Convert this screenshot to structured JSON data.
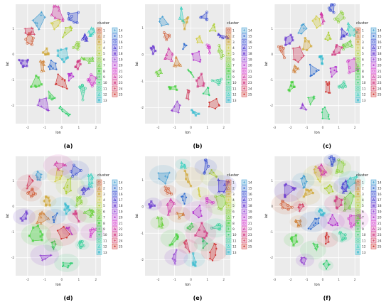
{
  "figure": {
    "panel_labels": [
      "(a)",
      "(b)",
      "(c)",
      "(d)",
      "(e)",
      "(f)"
    ]
  },
  "chart_data": [
    {
      "panel": "(a)",
      "type": "scatter",
      "xlabel": "lon",
      "ylabel": "lat",
      "xlim": [
        -2.7,
        2.3
      ],
      "ylim": [
        -2.7,
        1.95
      ],
      "xticks": [
        -2,
        -1,
        0,
        1,
        2
      ],
      "yticks": [
        -2,
        -1,
        0,
        1
      ],
      "grid": true,
      "legend": {
        "title": "cluster",
        "placement": "right",
        "entries": [
          "1",
          "2",
          "3",
          "4",
          "5",
          "6",
          "7",
          "8",
          "9",
          "10",
          "11",
          "12",
          "13",
          "14",
          "15",
          "16",
          "17",
          "18",
          "19",
          "20",
          "21",
          "22",
          "23",
          "24",
          "25"
        ]
      },
      "shaded_regions": false,
      "cluster_centers": [
        {
          "cluster": 1,
          "x": -1.8,
          "y": 0.6
        },
        {
          "cluster": 2,
          "x": -1.2,
          "y": -0.5
        },
        {
          "cluster": 3,
          "x": -0.9,
          "y": 0.1
        },
        {
          "cluster": 4,
          "x": -0.3,
          "y": 1.2
        },
        {
          "cluster": 5,
          "x": 0.4,
          "y": 0.8
        },
        {
          "cluster": 6,
          "x": 0.9,
          "y": 0.3
        },
        {
          "cluster": 7,
          "x": 1.5,
          "y": -0.2
        },
        {
          "cluster": 8,
          "x": -1.6,
          "y": -1.1
        },
        {
          "cluster": 9,
          "x": -0.6,
          "y": -1.6
        },
        {
          "cluster": 10,
          "x": 0.2,
          "y": -2.2
        },
        {
          "cluster": 11,
          "x": 1.1,
          "y": -1.5
        },
        {
          "cluster": 12,
          "x": 1.7,
          "y": 0.9
        },
        {
          "cluster": 13,
          "x": 0.1,
          "y": 0.0
        },
        {
          "cluster": 14,
          "x": -1.3,
          "y": 1.3
        },
        {
          "cluster": 15,
          "x": -0.5,
          "y": -0.4
        },
        {
          "cluster": 16,
          "x": 0.7,
          "y": 1.4
        },
        {
          "cluster": 17,
          "x": 1.3,
          "y": 0.6
        },
        {
          "cluster": 18,
          "x": -2.2,
          "y": -0.3
        },
        {
          "cluster": 19,
          "x": -1.0,
          "y": -2.0
        },
        {
          "cluster": 20,
          "x": 0.5,
          "y": -0.9
        },
        {
          "cluster": 21,
          "x": 1.8,
          "y": -1.0
        },
        {
          "cluster": 22,
          "x": -0.2,
          "y": 1.6
        },
        {
          "cluster": 23,
          "x": 0.9,
          "y": -0.4
        },
        {
          "cluster": 24,
          "x": -1.9,
          "y": 0.9
        },
        {
          "cluster": 25,
          "x": 0.0,
          "y": -1.1
        }
      ]
    },
    {
      "panel": "(b)",
      "type": "scatter",
      "xlabel": "lon",
      "ylabel": "lat",
      "xlim": [
        -2.8,
        2.4
      ],
      "ylim": [
        -2.6,
        1.9
      ],
      "xticks": [
        -2,
        -1,
        0,
        1,
        2
      ],
      "yticks": [
        -2,
        -1,
        0,
        1
      ],
      "grid": true,
      "legend": {
        "title": "cluster",
        "placement": "right",
        "entries": [
          "1",
          "2",
          "3",
          "4",
          "5",
          "6",
          "7",
          "8",
          "9",
          "10",
          "11",
          "12",
          "13",
          "14",
          "15",
          "16",
          "17",
          "18",
          "19",
          "20",
          "21",
          "22",
          "23",
          "24",
          "25"
        ]
      },
      "shaded_regions": false,
      "cluster_centers": [
        {
          "cluster": 1,
          "x": -1.5,
          "y": 0.7
        },
        {
          "cluster": 2,
          "x": -0.8,
          "y": -0.3
        },
        {
          "cluster": 3,
          "x": -0.2,
          "y": 1.1
        },
        {
          "cluster": 4,
          "x": 0.5,
          "y": 0.5
        },
        {
          "cluster": 5,
          "x": 1.3,
          "y": 1.0
        },
        {
          "cluster": 6,
          "x": 1.7,
          "y": 0.0
        },
        {
          "cluster": 7,
          "x": -2.0,
          "y": -0.6
        },
        {
          "cluster": 8,
          "x": -1.1,
          "y": -1.2
        },
        {
          "cluster": 9,
          "x": 0.0,
          "y": -0.8
        },
        {
          "cluster": 10,
          "x": 0.9,
          "y": -1.4
        },
        {
          "cluster": 11,
          "x": 1.5,
          "y": -0.9
        },
        {
          "cluster": 12,
          "x": -0.6,
          "y": 1.6
        },
        {
          "cluster": 13,
          "x": 0.3,
          "y": -2.1
        },
        {
          "cluster": 14,
          "x": -1.7,
          "y": 1.3
        },
        {
          "cluster": 15,
          "x": -0.4,
          "y": 0.3
        },
        {
          "cluster": 16,
          "x": 0.8,
          "y": 1.5
        },
        {
          "cluster": 17,
          "x": 1.9,
          "y": 0.8
        },
        {
          "cluster": 18,
          "x": -2.3,
          "y": 0.2
        },
        {
          "cluster": 19,
          "x": -0.9,
          "y": -2.0
        },
        {
          "cluster": 20,
          "x": 0.4,
          "y": -0.2
        },
        {
          "cluster": 21,
          "x": 1.1,
          "y": 0.2
        },
        {
          "cluster": 22,
          "x": -1.3,
          "y": 0.0
        },
        {
          "cluster": 23,
          "x": 0.6,
          "y": -1.0
        },
        {
          "cluster": 24,
          "x": -0.2,
          "y": -1.5
        },
        {
          "cluster": 25,
          "x": 1.4,
          "y": -1.8
        }
      ]
    },
    {
      "panel": "(c)",
      "type": "scatter",
      "xlabel": "lon",
      "ylabel": "lat",
      "xlim": [
        -3.0,
        2.3
      ],
      "ylim": [
        -2.7,
        1.95
      ],
      "xticks": [
        -3,
        -2,
        -1,
        0,
        1,
        2
      ],
      "yticks": [
        -2,
        -1,
        0,
        1
      ],
      "grid": true,
      "legend": {
        "title": "cluster",
        "placement": "right",
        "entries": [
          "1",
          "2",
          "3",
          "4",
          "5",
          "6",
          "7",
          "8",
          "9",
          "10",
          "11",
          "12",
          "13",
          "14",
          "15",
          "16",
          "17",
          "18",
          "19",
          "20",
          "21",
          "22",
          "23",
          "24",
          "25"
        ]
      },
      "shaded_regions": false,
      "cluster_centers": [
        {
          "cluster": 1,
          "x": -2.4,
          "y": 0.1
        },
        {
          "cluster": 2,
          "x": -1.6,
          "y": -0.6
        },
        {
          "cluster": 3,
          "x": -1.0,
          "y": 0.4
        },
        {
          "cluster": 4,
          "x": -0.4,
          "y": 1.2
        },
        {
          "cluster": 5,
          "x": 0.3,
          "y": 0.7
        },
        {
          "cluster": 6,
          "x": 1.0,
          "y": 1.5
        },
        {
          "cluster": 7,
          "x": 1.6,
          "y": 0.2
        },
        {
          "cluster": 8,
          "x": -1.9,
          "y": -1.3
        },
        {
          "cluster": 9,
          "x": -0.7,
          "y": -1.7
        },
        {
          "cluster": 10,
          "x": 0.2,
          "y": -2.3
        },
        {
          "cluster": 11,
          "x": 1.2,
          "y": -1.1
        },
        {
          "cluster": 12,
          "x": 1.8,
          "y": 1.0
        },
        {
          "cluster": 13,
          "x": -0.1,
          "y": -0.2
        },
        {
          "cluster": 14,
          "x": -1.3,
          "y": 1.0
        },
        {
          "cluster": 15,
          "x": -0.6,
          "y": -0.6
        },
        {
          "cluster": 16,
          "x": 0.6,
          "y": 1.8
        },
        {
          "cluster": 17,
          "x": 1.4,
          "y": 0.8
        },
        {
          "cluster": 18,
          "x": -2.1,
          "y": 0.6
        },
        {
          "cluster": 19,
          "x": -1.2,
          "y": -2.1
        },
        {
          "cluster": 20,
          "x": 0.6,
          "y": -0.6
        },
        {
          "cluster": 21,
          "x": 1.9,
          "y": -0.5
        },
        {
          "cluster": 22,
          "x": 0.0,
          "y": 1.4
        },
        {
          "cluster": 23,
          "x": 0.9,
          "y": 0.1
        },
        {
          "cluster": 24,
          "x": -1.5,
          "y": 0.0
        },
        {
          "cluster": 25,
          "x": 0.3,
          "y": -1.3
        }
      ]
    },
    {
      "panel": "(d)",
      "type": "scatter",
      "xlabel": "lon",
      "ylabel": "lat",
      "xlim": [
        -2.7,
        2.3
      ],
      "ylim": [
        -2.7,
        1.95
      ],
      "xticks": [
        -2,
        -1,
        0,
        1,
        2
      ],
      "yticks": [
        -2,
        -1,
        0,
        1
      ],
      "grid": true,
      "legend": {
        "title": "cluster",
        "placement": "right",
        "entries": [
          "1",
          "2",
          "3",
          "4",
          "5",
          "6",
          "7",
          "8",
          "9",
          "10",
          "11",
          "12",
          "13",
          "14",
          "15",
          "16",
          "17",
          "18",
          "19",
          "20",
          "21",
          "22",
          "23",
          "24",
          "25"
        ]
      },
      "shaded_regions": true,
      "cluster_centers": [
        {
          "cluster": 1,
          "x": -1.8,
          "y": 0.5
        },
        {
          "cluster": 2,
          "x": -1.1,
          "y": -0.5
        },
        {
          "cluster": 3,
          "x": -0.8,
          "y": 0.2
        },
        {
          "cluster": 4,
          "x": -0.2,
          "y": 1.2
        },
        {
          "cluster": 5,
          "x": 0.5,
          "y": 0.8
        },
        {
          "cluster": 6,
          "x": 1.0,
          "y": 0.2
        },
        {
          "cluster": 7,
          "x": 1.6,
          "y": -0.3
        },
        {
          "cluster": 8,
          "x": -1.5,
          "y": -1.1
        },
        {
          "cluster": 9,
          "x": -0.5,
          "y": -1.5
        },
        {
          "cluster": 10,
          "x": 0.3,
          "y": -2.2
        },
        {
          "cluster": 11,
          "x": 1.2,
          "y": -1.5
        },
        {
          "cluster": 12,
          "x": 1.7,
          "y": 1.0
        },
        {
          "cluster": 13,
          "x": 0.1,
          "y": 0.0
        },
        {
          "cluster": 14,
          "x": -1.3,
          "y": 1.2
        },
        {
          "cluster": 15,
          "x": -0.4,
          "y": -0.4
        },
        {
          "cluster": 16,
          "x": 0.8,
          "y": 1.4
        },
        {
          "cluster": 17,
          "x": 1.4,
          "y": 0.6
        },
        {
          "cluster": 18,
          "x": -2.2,
          "y": -0.4
        },
        {
          "cluster": 19,
          "x": -1.0,
          "y": -1.9
        },
        {
          "cluster": 20,
          "x": 0.5,
          "y": -0.9
        },
        {
          "cluster": 21,
          "x": 1.8,
          "y": -1.0
        },
        {
          "cluster": 22,
          "x": -0.2,
          "y": 1.6
        },
        {
          "cluster": 23,
          "x": 0.9,
          "y": -0.4
        },
        {
          "cluster": 24,
          "x": -1.9,
          "y": 0.9
        },
        {
          "cluster": 25,
          "x": 0.0,
          "y": -1.1
        }
      ]
    },
    {
      "panel": "(e)",
      "type": "scatter",
      "xlabel": "lon",
      "ylabel": "lat",
      "xlim": [
        -2.8,
        2.4
      ],
      "ylim": [
        -2.6,
        1.9
      ],
      "xticks": [
        -2,
        -1,
        0,
        1,
        2
      ],
      "yticks": [
        -2,
        -1,
        0,
        1
      ],
      "grid": true,
      "legend": {
        "title": "cluster",
        "placement": "right",
        "entries": [
          "1",
          "2",
          "3",
          "4",
          "5",
          "6",
          "7",
          "8",
          "9",
          "10",
          "11",
          "12",
          "13",
          "14",
          "15",
          "16",
          "17",
          "18",
          "19",
          "20",
          "21",
          "22",
          "23",
          "24",
          "25"
        ]
      },
      "shaded_regions": true,
      "cluster_centers": [
        {
          "cluster": 1,
          "x": -1.4,
          "y": 0.6
        },
        {
          "cluster": 2,
          "x": -0.7,
          "y": -0.3
        },
        {
          "cluster": 3,
          "x": -0.1,
          "y": 1.1
        },
        {
          "cluster": 4,
          "x": 0.6,
          "y": 0.5
        },
        {
          "cluster": 5,
          "x": 1.3,
          "y": 1.1
        },
        {
          "cluster": 6,
          "x": 1.8,
          "y": 0.1
        },
        {
          "cluster": 7,
          "x": -1.9,
          "y": -0.6
        },
        {
          "cluster": 8,
          "x": -1.1,
          "y": -1.2
        },
        {
          "cluster": 9,
          "x": 0.0,
          "y": -0.8
        },
        {
          "cluster": 10,
          "x": 0.8,
          "y": -1.4
        },
        {
          "cluster": 11,
          "x": 1.5,
          "y": -0.8
        },
        {
          "cluster": 12,
          "x": -0.5,
          "y": 1.6
        },
        {
          "cluster": 13,
          "x": 0.2,
          "y": -2.0
        },
        {
          "cluster": 14,
          "x": -1.7,
          "y": 1.2
        },
        {
          "cluster": 15,
          "x": -0.4,
          "y": 0.3
        },
        {
          "cluster": 16,
          "x": 0.9,
          "y": 1.5
        },
        {
          "cluster": 17,
          "x": 1.9,
          "y": 0.8
        },
        {
          "cluster": 18,
          "x": -2.3,
          "y": 0.1
        },
        {
          "cluster": 19,
          "x": -0.9,
          "y": -1.9
        },
        {
          "cluster": 20,
          "x": 0.4,
          "y": -0.2
        },
        {
          "cluster": 21,
          "x": 1.1,
          "y": 0.2
        },
        {
          "cluster": 22,
          "x": -1.3,
          "y": 0.0
        },
        {
          "cluster": 23,
          "x": 0.6,
          "y": -1.0
        },
        {
          "cluster": 24,
          "x": -0.2,
          "y": -1.5
        },
        {
          "cluster": 25,
          "x": 1.4,
          "y": -1.7
        }
      ]
    },
    {
      "panel": "(f)",
      "type": "scatter",
      "xlabel": "lon",
      "ylabel": "lat",
      "xlim": [
        -3.0,
        2.3
      ],
      "ylim": [
        -2.7,
        1.95
      ],
      "xticks": [
        -3,
        -2,
        -1,
        0,
        1,
        2
      ],
      "yticks": [
        -2,
        -1,
        0,
        1
      ],
      "grid": true,
      "legend": {
        "title": "cluster",
        "placement": "right",
        "entries": [
          "1",
          "2",
          "3",
          "4",
          "5",
          "6",
          "7",
          "8",
          "9",
          "10",
          "11",
          "12",
          "13",
          "14",
          "15",
          "16",
          "17",
          "18",
          "19",
          "20",
          "21",
          "22",
          "23",
          "24",
          "25"
        ]
      },
      "shaded_regions": true,
      "cluster_centers": [
        {
          "cluster": 1,
          "x": -2.3,
          "y": 0.1
        },
        {
          "cluster": 2,
          "x": -1.5,
          "y": -0.6
        },
        {
          "cluster": 3,
          "x": -0.9,
          "y": 0.4
        },
        {
          "cluster": 4,
          "x": -0.3,
          "y": 1.2
        },
        {
          "cluster": 5,
          "x": 0.4,
          "y": 0.7
        },
        {
          "cluster": 6,
          "x": 1.0,
          "y": 1.5
        },
        {
          "cluster": 7,
          "x": 1.6,
          "y": 0.2
        },
        {
          "cluster": 8,
          "x": -1.8,
          "y": -1.3
        },
        {
          "cluster": 9,
          "x": -0.6,
          "y": -1.7
        },
        {
          "cluster": 10,
          "x": 0.2,
          "y": -2.3
        },
        {
          "cluster": 11,
          "x": 1.2,
          "y": -1.1
        },
        {
          "cluster": 12,
          "x": 1.8,
          "y": 1.0
        },
        {
          "cluster": 13,
          "x": 0.0,
          "y": -0.2
        },
        {
          "cluster": 14,
          "x": -1.2,
          "y": 1.0
        },
        {
          "cluster": 15,
          "x": -0.6,
          "y": -0.6
        },
        {
          "cluster": 16,
          "x": 0.6,
          "y": 1.8
        },
        {
          "cluster": 17,
          "x": 1.4,
          "y": 0.8
        },
        {
          "cluster": 18,
          "x": -2.1,
          "y": 0.6
        },
        {
          "cluster": 19,
          "x": -1.1,
          "y": -2.1
        },
        {
          "cluster": 20,
          "x": 0.6,
          "y": -0.6
        },
        {
          "cluster": 21,
          "x": 1.9,
          "y": -0.5
        },
        {
          "cluster": 22,
          "x": 0.0,
          "y": 1.4
        },
        {
          "cluster": 23,
          "x": 0.9,
          "y": 0.1
        },
        {
          "cluster": 24,
          "x": -1.4,
          "y": 0.0
        },
        {
          "cluster": 25,
          "x": 0.3,
          "y": -1.3
        }
      ]
    }
  ]
}
